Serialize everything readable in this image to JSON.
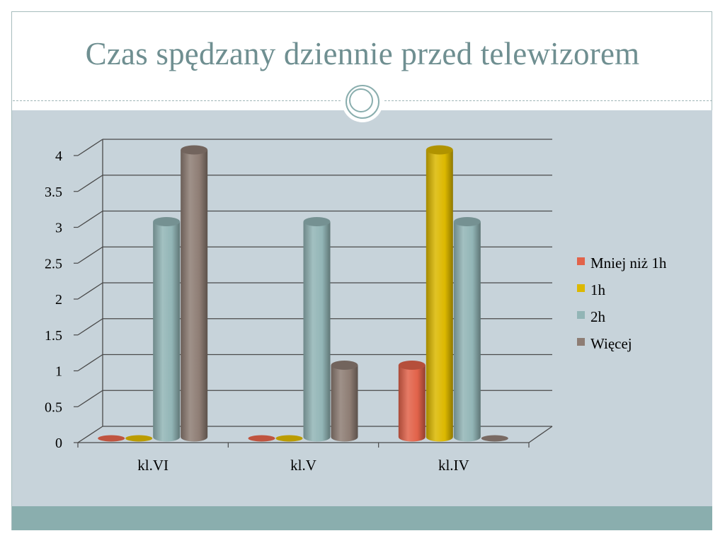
{
  "slide": {
    "title": "Czas spędzany dziennie przed telewizorem"
  },
  "chart_data": {
    "type": "bar",
    "style": "3d-cylinder",
    "title": "",
    "xlabel": "",
    "ylabel": "",
    "ylim": [
      0,
      4
    ],
    "yticks": [
      "0",
      "0.5",
      "1",
      "1.5",
      "2",
      "2.5",
      "3",
      "3.5",
      "4"
    ],
    "grid": true,
    "legend_position": "right",
    "categories": [
      "kl.VI",
      "kl.V",
      "kl.IV"
    ],
    "series": [
      {
        "name": "Mniej niż 1h",
        "color": "#e2634a",
        "values": [
          0,
          0,
          1
        ]
      },
      {
        "name": "1h",
        "color": "#dcb800",
        "values": [
          0,
          0,
          4
        ]
      },
      {
        "name": "2h",
        "color": "#92b5b6",
        "values": [
          3,
          3,
          3
        ]
      },
      {
        "name": "Więcej",
        "color": "#8e7d74",
        "values": [
          4,
          1,
          0
        ]
      }
    ]
  }
}
